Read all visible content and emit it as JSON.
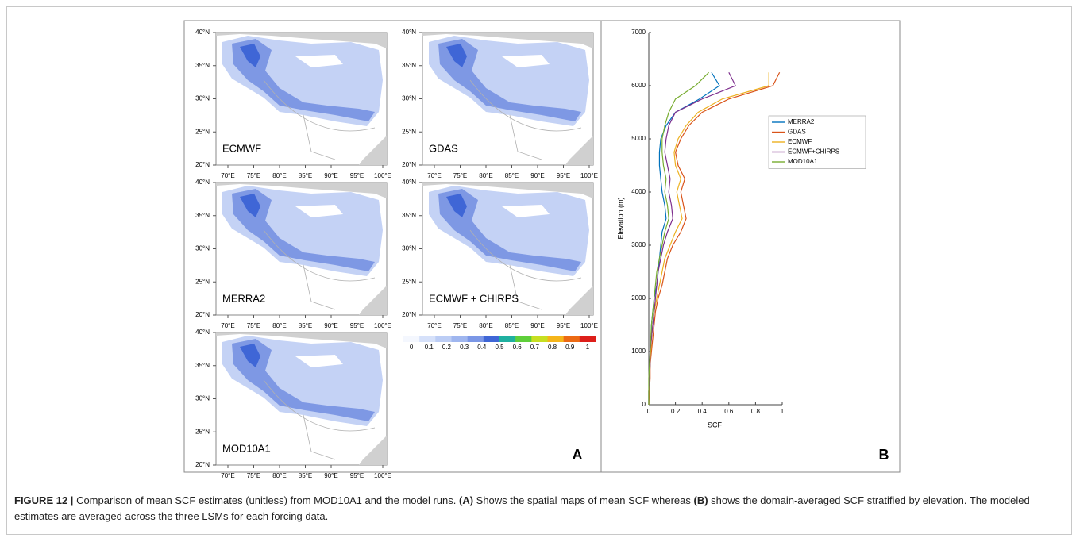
{
  "figure": {
    "panel_a": {
      "label": "A",
      "maps": [
        {
          "name": "ECMWF"
        },
        {
          "name": "GDAS"
        },
        {
          "name": "MERRA2"
        },
        {
          "name": "ECMWF + CHIRPS"
        },
        {
          "name": "MOD10A1"
        }
      ],
      "lat_ticks": [
        "40°N",
        "35°N",
        "30°N",
        "25°N",
        "20°N"
      ],
      "lon_ticks": [
        "70°E",
        "75°E",
        "80°E",
        "85°E",
        "90°E",
        "95°E",
        "100°E"
      ],
      "colorbar": {
        "ticks": [
          0,
          0.1,
          0.2,
          0.3,
          0.4,
          0.5,
          0.6,
          0.7,
          0.8,
          0.9,
          1
        ],
        "colors": [
          "#f4f7fe",
          "#d6e1fa",
          "#bccdf5",
          "#9fb6ef",
          "#7b97e6",
          "#3f66d6",
          "#20b0a0",
          "#5fcf3a",
          "#c7df22",
          "#f5b51a",
          "#ec6a14",
          "#dd1f1a"
        ]
      }
    },
    "panel_b": {
      "label": "B"
    }
  },
  "chart_data": {
    "type": "line",
    "xlabel": "SCF",
    "ylabel": "Elevation (m)",
    "y": [
      0,
      250,
      500,
      750,
      1000,
      1250,
      1500,
      1750,
      2000,
      2250,
      2500,
      2750,
      3000,
      3250,
      3500,
      3750,
      4000,
      4250,
      4500,
      4750,
      5000,
      5250,
      5500,
      5750,
      6000,
      6250
    ],
    "series": [
      {
        "name": "MERRA2",
        "color": "#0072bd",
        "values": [
          0,
          0,
          0.005,
          0.01,
          0.01,
          0.02,
          0.02,
          0.03,
          0.04,
          0.06,
          0.07,
          0.08,
          0.09,
          0.1,
          0.13,
          0.12,
          0.1,
          0.09,
          0.08,
          0.08,
          0.09,
          0.13,
          0.2,
          0.38,
          0.53,
          0.47
        ]
      },
      {
        "name": "GDAS",
        "color": "#d95319",
        "values": [
          0,
          0.005,
          0.01,
          0.01,
          0.02,
          0.03,
          0.04,
          0.05,
          0.07,
          0.1,
          0.12,
          0.14,
          0.18,
          0.24,
          0.28,
          0.26,
          0.24,
          0.27,
          0.22,
          0.2,
          0.24,
          0.3,
          0.4,
          0.6,
          0.93,
          0.98
        ]
      },
      {
        "name": "ECMWF",
        "color": "#edb120",
        "values": [
          0,
          0,
          0.005,
          0.01,
          0.015,
          0.02,
          0.03,
          0.04,
          0.06,
          0.08,
          0.1,
          0.12,
          0.16,
          0.2,
          0.25,
          0.23,
          0.21,
          0.24,
          0.2,
          0.19,
          0.22,
          0.28,
          0.37,
          0.55,
          0.9,
          0.9
        ]
      },
      {
        "name": "ECMWF+CHIRPS",
        "color": "#7e2f8e",
        "values": [
          0,
          0,
          0.005,
          0.01,
          0.01,
          0.02,
          0.03,
          0.04,
          0.05,
          0.06,
          0.07,
          0.09,
          0.11,
          0.14,
          0.18,
          0.17,
          0.15,
          0.16,
          0.14,
          0.12,
          0.13,
          0.15,
          0.2,
          0.4,
          0.65,
          0.6
        ]
      },
      {
        "name": "MOD10A1",
        "color": "#77ac30",
        "values": [
          0,
          0,
          0,
          0.005,
          0.01,
          0.015,
          0.02,
          0.03,
          0.04,
          0.05,
          0.06,
          0.08,
          0.1,
          0.12,
          0.15,
          0.14,
          0.12,
          0.13,
          0.11,
          0.1,
          0.1,
          0.12,
          0.15,
          0.2,
          0.35,
          0.45
        ]
      }
    ],
    "xlim": [
      0,
      1
    ],
    "xticks": [
      0,
      0.2,
      0.4,
      0.6,
      0.8,
      1
    ],
    "ylim": [
      0,
      7000
    ],
    "yticks": [
      0,
      1000,
      2000,
      3000,
      4000,
      5000,
      6000,
      7000
    ],
    "legend": "upper-right"
  },
  "caption": {
    "label": "FIGURE 12 |",
    "segments": [
      "Comparison of mean SCF estimates (unitless) from MOD10A1 and the model runs. ",
      "(A)",
      " Shows the spatial maps of mean SCF whereas ",
      "(B)",
      " shows the domain-averaged SCF stratified by elevation. The modeled estimates are averaged across the three LSMs for each forcing data."
    ]
  }
}
